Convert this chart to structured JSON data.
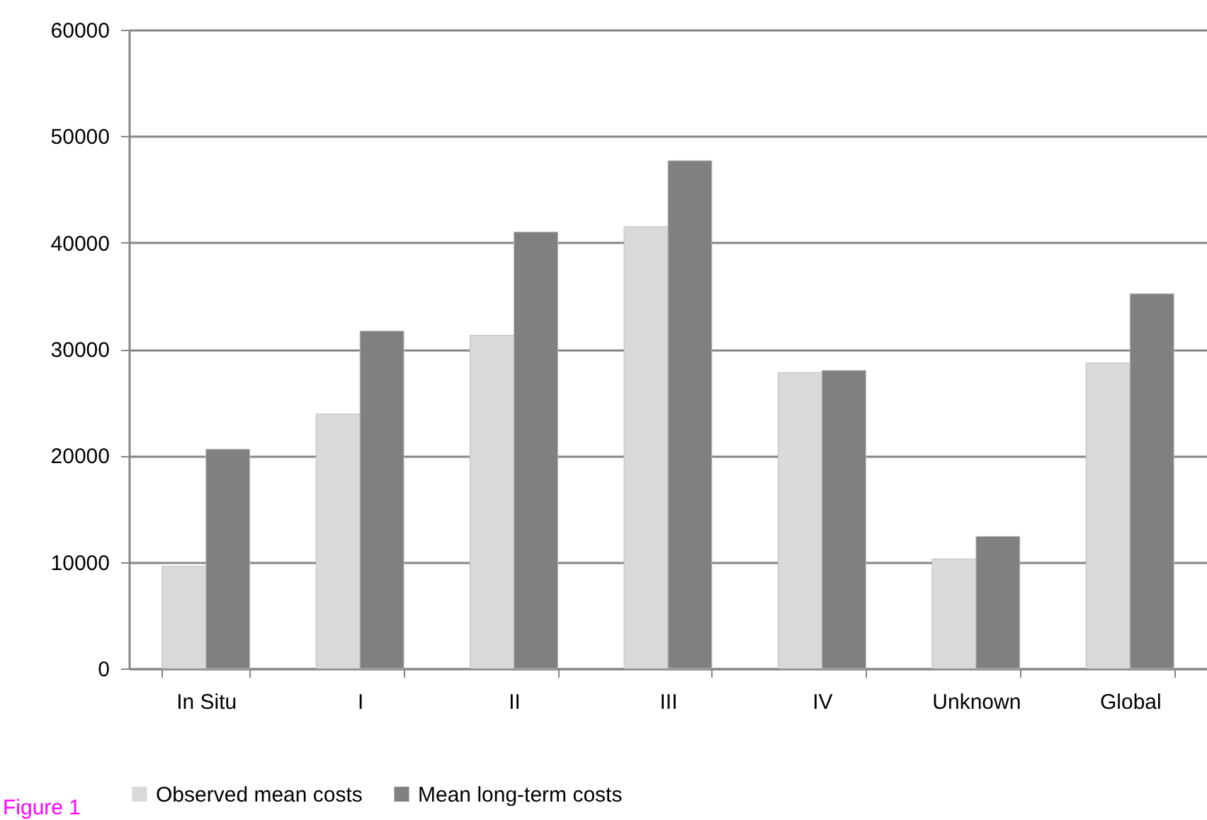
{
  "chart_data": {
    "type": "bar",
    "categories": [
      "In Situ",
      "I",
      "II",
      "III",
      "IV",
      "Unknown",
      "Global"
    ],
    "series": [
      {
        "name": "Observed mean costs",
        "color": "#d9d9d9",
        "values": [
          9600,
          23900,
          31300,
          41500,
          27800,
          10300,
          28700
        ]
      },
      {
        "name": "Mean long-term costs",
        "color": "#808080",
        "values": [
          20600,
          31700,
          41000,
          47700,
          28000,
          12400,
          35200
        ]
      }
    ],
    "ylim": [
      0,
      60000
    ],
    "yticks": [
      0,
      10000,
      20000,
      30000,
      40000,
      50000,
      60000
    ],
    "grid": "y",
    "legend": "bottom",
    "annotations": [
      "Figure 1"
    ]
  }
}
